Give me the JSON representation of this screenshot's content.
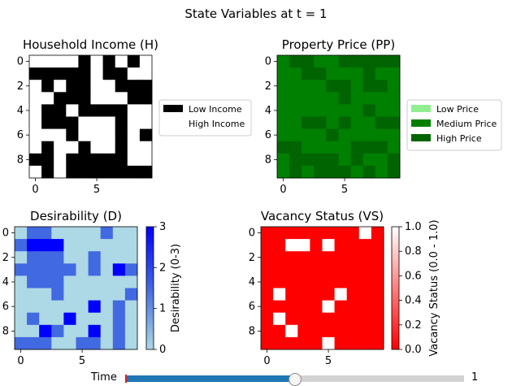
{
  "figure": {
    "suptitle": "State Variables at t = 1"
  },
  "slider": {
    "label": "Time",
    "value": 1,
    "min": 0,
    "max": 2,
    "value_text": "1"
  },
  "chart_data": [
    {
      "type": "heatmap",
      "title": "Household Income (H)",
      "colormap": [
        "#000000",
        "#ffffff"
      ],
      "legend": [
        {
          "label": "Low Income",
          "color": "#000000"
        },
        {
          "label": "High Income",
          "color": "#ffffff"
        }
      ],
      "xticks": [
        0,
        5
      ],
      "yticks": [
        0,
        2,
        4,
        6,
        8
      ],
      "grid": [
        [
          1,
          1,
          1,
          1,
          0,
          1,
          0,
          1,
          0,
          1
        ],
        [
          0,
          0,
          0,
          0,
          0,
          1,
          0,
          0,
          1,
          1
        ],
        [
          1,
          0,
          1,
          0,
          0,
          1,
          1,
          0,
          0,
          0
        ],
        [
          1,
          1,
          0,
          0,
          0,
          1,
          1,
          1,
          0,
          0
        ],
        [
          1,
          0,
          0,
          1,
          0,
          0,
          0,
          0,
          1,
          1
        ],
        [
          1,
          0,
          0,
          0,
          1,
          1,
          1,
          0,
          1,
          1
        ],
        [
          1,
          1,
          1,
          0,
          1,
          1,
          1,
          0,
          1,
          0
        ],
        [
          1,
          0,
          1,
          1,
          0,
          1,
          1,
          0,
          1,
          1
        ],
        [
          0,
          0,
          1,
          0,
          0,
          0,
          0,
          0,
          1,
          1
        ],
        [
          1,
          0,
          1,
          0,
          0,
          0,
          0,
          0,
          0,
          0
        ]
      ]
    },
    {
      "type": "heatmap",
      "title": "Property Price (PP)",
      "colormap": [
        "#90ee90",
        "#008000",
        "#006400"
      ],
      "legend": [
        {
          "label": "Low Price",
          "color": "#90ee90"
        },
        {
          "label": "Medium Price",
          "color": "#008000"
        },
        {
          "label": "High Price",
          "color": "#006400"
        }
      ],
      "xticks": [
        0,
        5
      ],
      "yticks": [
        0,
        2,
        4,
        6,
        8
      ],
      "grid": [
        [
          1,
          2,
          2,
          1,
          1,
          2,
          2,
          2,
          2,
          2
        ],
        [
          1,
          1,
          2,
          2,
          1,
          1,
          1,
          2,
          1,
          1
        ],
        [
          1,
          1,
          1,
          1,
          2,
          2,
          1,
          2,
          2,
          1
        ],
        [
          1,
          1,
          1,
          1,
          1,
          2,
          1,
          1,
          1,
          1
        ],
        [
          1,
          1,
          1,
          1,
          1,
          1,
          1,
          2,
          1,
          1
        ],
        [
          1,
          1,
          2,
          2,
          1,
          2,
          1,
          1,
          2,
          2
        ],
        [
          1,
          1,
          1,
          1,
          2,
          1,
          1,
          1,
          1,
          1
        ],
        [
          2,
          2,
          1,
          1,
          1,
          1,
          2,
          2,
          2,
          1
        ],
        [
          1,
          2,
          2,
          2,
          2,
          1,
          2,
          1,
          1,
          2
        ],
        [
          1,
          2,
          1,
          2,
          2,
          2,
          1,
          2,
          1,
          2
        ]
      ]
    },
    {
      "type": "heatmap",
      "title": "Desirability (D)",
      "colormap": [
        "#add8e6",
        "#4169e1",
        "#0000ff"
      ],
      "colorbar": {
        "label": "Desirability (0-3)",
        "min": 0,
        "max": 3,
        "ticks": [
          0,
          1,
          2,
          3
        ]
      },
      "xticks": [
        0,
        5
      ],
      "yticks": [
        0,
        2,
        4,
        6,
        8
      ],
      "grid": [
        [
          0,
          1,
          1,
          0,
          0,
          0,
          0,
          1,
          0,
          0
        ],
        [
          1,
          2,
          2,
          2,
          0,
          0,
          0,
          0,
          0,
          0
        ],
        [
          0,
          1,
          1,
          1,
          0,
          0,
          1,
          0,
          0,
          0
        ],
        [
          1,
          1,
          1,
          1,
          1,
          0,
          1,
          0,
          2,
          1
        ],
        [
          0,
          1,
          1,
          1,
          0,
          0,
          0,
          0,
          0,
          0
        ],
        [
          0,
          0,
          0,
          1,
          0,
          0,
          0,
          0,
          0,
          1
        ],
        [
          0,
          0,
          0,
          0,
          0,
          0,
          2,
          0,
          1,
          0
        ],
        [
          0,
          1,
          0,
          0,
          2,
          0,
          0,
          0,
          1,
          0
        ],
        [
          0,
          0,
          2,
          1,
          0,
          0,
          2,
          0,
          1,
          0
        ],
        [
          1,
          1,
          1,
          0,
          0,
          1,
          1,
          0,
          1,
          0
        ]
      ]
    },
    {
      "type": "heatmap",
      "title": "Vacancy Status (VS)",
      "colormap": [
        "#ff0000",
        "#ffffff"
      ],
      "colorbar": {
        "label": "Vacancy Status (0.0 - 1.0)",
        "min": 0,
        "max": 1,
        "ticks": [
          0.0,
          0.2,
          0.4,
          0.6,
          0.8,
          1.0
        ]
      },
      "xticks": [
        0,
        5
      ],
      "yticks": [
        0,
        2,
        4,
        6,
        8
      ],
      "grid": [
        [
          0,
          0,
          0,
          0,
          0,
          0,
          0,
          0,
          1,
          0
        ],
        [
          0,
          0,
          1,
          1,
          0,
          1,
          0,
          0,
          0,
          0
        ],
        [
          0,
          0,
          0,
          0,
          0,
          0,
          0,
          0,
          0,
          0
        ],
        [
          0,
          0,
          0,
          0,
          0,
          0,
          0,
          0,
          0,
          0
        ],
        [
          0,
          0,
          0,
          0,
          0,
          0,
          0,
          0,
          0,
          0
        ],
        [
          0,
          1,
          0,
          0,
          0,
          0,
          1,
          0,
          0,
          0
        ],
        [
          0,
          0,
          0,
          0,
          0,
          1,
          0,
          0,
          0,
          0
        ],
        [
          0,
          1,
          0,
          0,
          0,
          0,
          0,
          0,
          0,
          0
        ],
        [
          0,
          0,
          1,
          0,
          0,
          0,
          0,
          0,
          0,
          0
        ],
        [
          0,
          0,
          0,
          0,
          0,
          1,
          0,
          0,
          0,
          0
        ]
      ]
    }
  ]
}
